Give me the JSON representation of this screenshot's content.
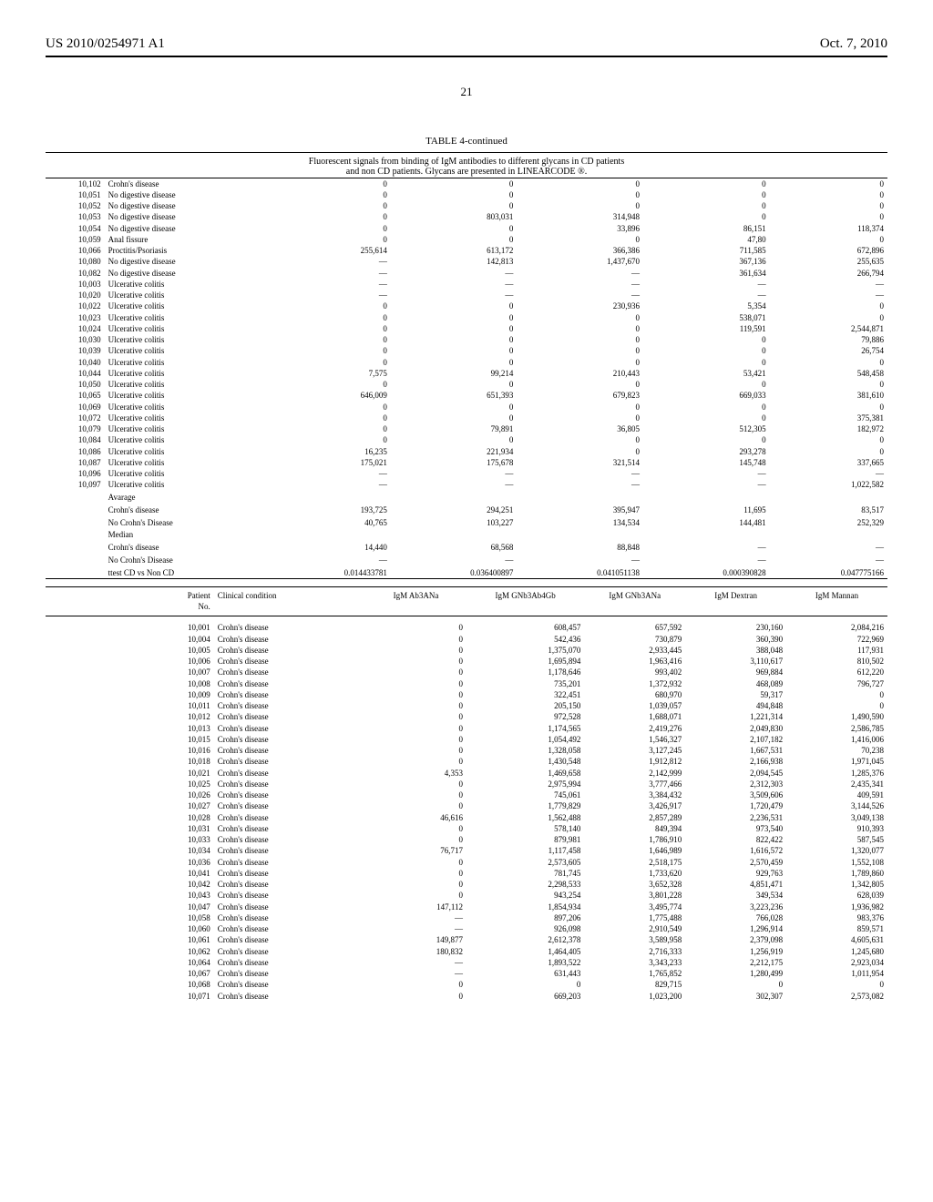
{
  "header": {
    "left": "US 2010/0254971 A1",
    "right": "Oct. 7, 2010",
    "page_number": "21"
  },
  "table1": {
    "caption": "TABLE 4-continued",
    "subtitle": "Fluorescent signals from binding of IgM antibodies to different glycans in CD patients\nand non CD patients. Glycans are presented in LINEARCODE ®.",
    "layout": {
      "font_size": 9,
      "col_widths_pct": [
        7,
        20,
        14,
        15,
        15,
        15,
        14
      ],
      "align": [
        "right",
        "left",
        "right",
        "right",
        "right",
        "right",
        "right"
      ]
    },
    "rows": [
      [
        "10,102",
        "Crohn's disease",
        "0",
        "0",
        "0",
        "0",
        "0"
      ],
      [
        "10,051",
        "No digestive disease",
        "0",
        "0",
        "0",
        "0",
        "0"
      ],
      [
        "10,052",
        "No digestive disease",
        "0",
        "0",
        "0",
        "0",
        "0"
      ],
      [
        "10,053",
        "No digestive disease",
        "0",
        "803,031",
        "314,948",
        "0",
        "0"
      ],
      [
        "10,054",
        "No digestive disease",
        "0",
        "0",
        "33,896",
        "86,151",
        "118,374"
      ],
      [
        "10,059",
        "Anal fissure",
        "0",
        "0",
        "0",
        "47,80",
        "0"
      ],
      [
        "10,066",
        "Proctitis/Psoriasis",
        "255,614",
        "613,172",
        "366,386",
        "711,585",
        "672,896"
      ],
      [
        "10,080",
        "No digestive disease",
        "—",
        "142,813",
        "1,437,670",
        "367,136",
        "255,635"
      ],
      [
        "10,082",
        "No digestive disease",
        "—",
        "—",
        "—",
        "361,634",
        "266,794"
      ],
      [
        "10,003",
        "Ulcerative colitis",
        "—",
        "—",
        "—",
        "—",
        "—"
      ],
      [
        "10,020",
        "Ulcerative colitis",
        "—",
        "—",
        "—",
        "—",
        "—"
      ],
      [
        "10,022",
        "Ulcerative colitis",
        "0",
        "0",
        "230,936",
        "5,354",
        "0"
      ],
      [
        "10,023",
        "Ulcerative colitis",
        "0",
        "0",
        "0",
        "538,071",
        "0"
      ],
      [
        "10,024",
        "Ulcerative colitis",
        "0",
        "0",
        "0",
        "119,591",
        "2,544,871"
      ],
      [
        "10,030",
        "Ulcerative colitis",
        "0",
        "0",
        "0",
        "0",
        "79,886"
      ],
      [
        "10,039",
        "Ulcerative colitis",
        "0",
        "0",
        "0",
        "0",
        "26,754"
      ],
      [
        "10,040",
        "Ulcerative colitis",
        "0",
        "0",
        "0",
        "0",
        "0"
      ],
      [
        "10,044",
        "Ulcerative colitis",
        "7,575",
        "99,214",
        "210,443",
        "53,421",
        "548,458"
      ],
      [
        "10,050",
        "Ulcerative colitis",
        "0",
        "0",
        "0",
        "0",
        "0"
      ],
      [
        "10,065",
        "Ulcerative colitis",
        "646,009",
        "651,393",
        "679,823",
        "669,033",
        "381,610"
      ],
      [
        "10,069",
        "Ulcerative colitis",
        "0",
        "0",
        "0",
        "0",
        "0"
      ],
      [
        "10,072",
        "Ulcerative colitis",
        "0",
        "0",
        "0",
        "0",
        "375,381"
      ],
      [
        "10,079",
        "Ulcerative colitis",
        "0",
        "79,891",
        "36,805",
        "512,305",
        "182,972"
      ],
      [
        "10,084",
        "Ulcerative colitis",
        "0",
        "0",
        "0",
        "0",
        "0"
      ],
      [
        "10,086",
        "Ulcerative colitis",
        "16,235",
        "221,934",
        "0",
        "293,278",
        "0"
      ],
      [
        "10,087",
        "Ulcerative colitis",
        "175,021",
        "175,678",
        "321,514",
        "145,748",
        "337,665"
      ],
      [
        "10,096",
        "Ulcerative colitis",
        "—",
        "—",
        "—",
        "—",
        "—"
      ],
      [
        "10,097",
        "Ulcerative colitis",
        "—",
        "—",
        "—",
        "—",
        "1,022,582"
      ]
    ],
    "summary": [
      [
        "",
        "Avarage",
        "",
        "",
        "",
        "",
        ""
      ],
      [
        "",
        "Crohn's disease",
        "193,725",
        "294,251",
        "395,947",
        "11,695",
        "83,517"
      ],
      [
        "",
        "No Crohn's Disease",
        "40,765",
        "103,227",
        "134,534",
        "144,481",
        "252,329"
      ],
      [
        "",
        "Median",
        "",
        "",
        "",
        "",
        ""
      ],
      [
        "",
        "Crohn's disease",
        "14,440",
        "68,568",
        "88,848",
        "—",
        "—"
      ],
      [
        "",
        "No Crohn's Disease",
        "—",
        "—",
        "—",
        "—",
        "—"
      ],
      [
        "",
        "ttest CD vs Non CD",
        "0.014433781",
        "0.036400897",
        "0.041051138",
        "0.000390828",
        "0.047775166"
      ]
    ]
  },
  "table2": {
    "headers": [
      "Patient\nNo.",
      "Clinical condition",
      "IgM Ab3ANa",
      "IgM GNb3Ab4Gb",
      "IgM GNb3ANa",
      "IgM Dextran",
      "IgM Mannan"
    ],
    "layout": {
      "font_size": 9,
      "col_widths_pct": [
        20,
        18,
        12,
        14,
        12,
        12,
        12
      ],
      "align": [
        "right",
        "left",
        "right",
        "right",
        "right",
        "right",
        "right"
      ]
    },
    "rows": [
      [
        "10,001",
        "Crohn's disease",
        "0",
        "608,457",
        "657,592",
        "230,160",
        "2,084,216"
      ],
      [
        "10,004",
        "Crohn's disease",
        "0",
        "542,436",
        "730,879",
        "360,390",
        "722,969"
      ],
      [
        "10,005",
        "Crohn's disease",
        "0",
        "1,375,070",
        "2,933,445",
        "388,048",
        "117,931"
      ],
      [
        "10,006",
        "Crohn's disease",
        "0",
        "1,695,894",
        "1,963,416",
        "3,110,617",
        "810,502"
      ],
      [
        "10,007",
        "Crohn's disease",
        "0",
        "1,178,646",
        "993,402",
        "969,884",
        "612,220"
      ],
      [
        "10,008",
        "Crohn's disease",
        "0",
        "735,201",
        "1,372,932",
        "468,089",
        "796,727"
      ],
      [
        "10,009",
        "Crohn's disease",
        "0",
        "322,451",
        "680,970",
        "59,317",
        "0"
      ],
      [
        "10,011",
        "Crohn's disease",
        "0",
        "205,150",
        "1,039,057",
        "494,848",
        "0"
      ],
      [
        "10,012",
        "Crohn's disease",
        "0",
        "972,528",
        "1,688,071",
        "1,221,314",
        "1,490,590"
      ],
      [
        "10,013",
        "Crohn's disease",
        "0",
        "1,174,565",
        "2,419,276",
        "2,049,830",
        "2,586,785"
      ],
      [
        "10,015",
        "Crohn's disease",
        "0",
        "1,054,492",
        "1,546,327",
        "2,107,182",
        "1,416,006"
      ],
      [
        "10,016",
        "Crohn's disease",
        "0",
        "1,328,058",
        "3,127,245",
        "1,667,531",
        "70,238"
      ],
      [
        "10,018",
        "Crohn's disease",
        "0",
        "1,430,548",
        "1,912,812",
        "2,166,938",
        "1,971,045"
      ],
      [
        "10,021",
        "Crohn's disease",
        "4,353",
        "1,469,658",
        "2,142,999",
        "2,094,545",
        "1,285,376"
      ],
      [
        "10,025",
        "Crohn's disease",
        "0",
        "2,975,994",
        "3,777,466",
        "2,312,303",
        "2,435,341"
      ],
      [
        "10,026",
        "Crohn's disease",
        "0",
        "745,061",
        "3,384,432",
        "3,509,606",
        "409,591"
      ],
      [
        "10,027",
        "Crohn's disease",
        "0",
        "1,779,829",
        "3,426,917",
        "1,720,479",
        "3,144,526"
      ],
      [
        "10,028",
        "Crohn's disease",
        "46,616",
        "1,562,488",
        "2,857,289",
        "2,236,531",
        "3,049,138"
      ],
      [
        "10,031",
        "Crohn's disease",
        "0",
        "578,140",
        "849,394",
        "973,540",
        "910,393"
      ],
      [
        "10,033",
        "Crohn's disease",
        "0",
        "879,981",
        "1,786,910",
        "822,422",
        "587,545"
      ],
      [
        "10,034",
        "Crohn's disease",
        "76,717",
        "1,117,458",
        "1,646,989",
        "1,616,572",
        "1,320,077"
      ],
      [
        "10,036",
        "Crohn's disease",
        "0",
        "2,573,605",
        "2,518,175",
        "2,570,459",
        "1,552,108"
      ],
      [
        "10,041",
        "Crohn's disease",
        "0",
        "781,745",
        "1,733,620",
        "929,763",
        "1,789,860"
      ],
      [
        "10,042",
        "Crohn's disease",
        "0",
        "2,298,533",
        "3,652,328",
        "4,851,471",
        "1,342,805"
      ],
      [
        "10,043",
        "Crohn's disease",
        "0",
        "943,254",
        "3,801,228",
        "349,534",
        "628,039"
      ],
      [
        "10,047",
        "Crohn's disease",
        "147,112",
        "1,854,934",
        "3,495,774",
        "3,223,236",
        "1,936,982"
      ],
      [
        "10,058",
        "Crohn's disease",
        "—",
        "897,206",
        "1,775,488",
        "766,028",
        "983,376"
      ],
      [
        "10,060",
        "Crohn's disease",
        "—",
        "926,098",
        "2,910,549",
        "1,296,914",
        "859,571"
      ],
      [
        "10,061",
        "Crohn's disease",
        "149,877",
        "2,612,378",
        "3,589,958",
        "2,379,098",
        "4,605,631"
      ],
      [
        "10,062",
        "Crohn's disease",
        "180,832",
        "1,464,405",
        "2,716,333",
        "1,256,919",
        "1,245,680"
      ],
      [
        "10,064",
        "Crohn's disease",
        "—",
        "1,893,522",
        "3,343,233",
        "2,212,175",
        "2,923,034"
      ],
      [
        "10,067",
        "Crohn's disease",
        "—",
        "631,443",
        "1,765,852",
        "1,280,499",
        "1,011,954"
      ],
      [
        "10,068",
        "Crohn's disease",
        "0",
        "0",
        "829,715",
        "0",
        "0"
      ],
      [
        "10,071",
        "Crohn's disease",
        "0",
        "669,203",
        "1,023,200",
        "302,307",
        "2,573,082"
      ]
    ]
  }
}
